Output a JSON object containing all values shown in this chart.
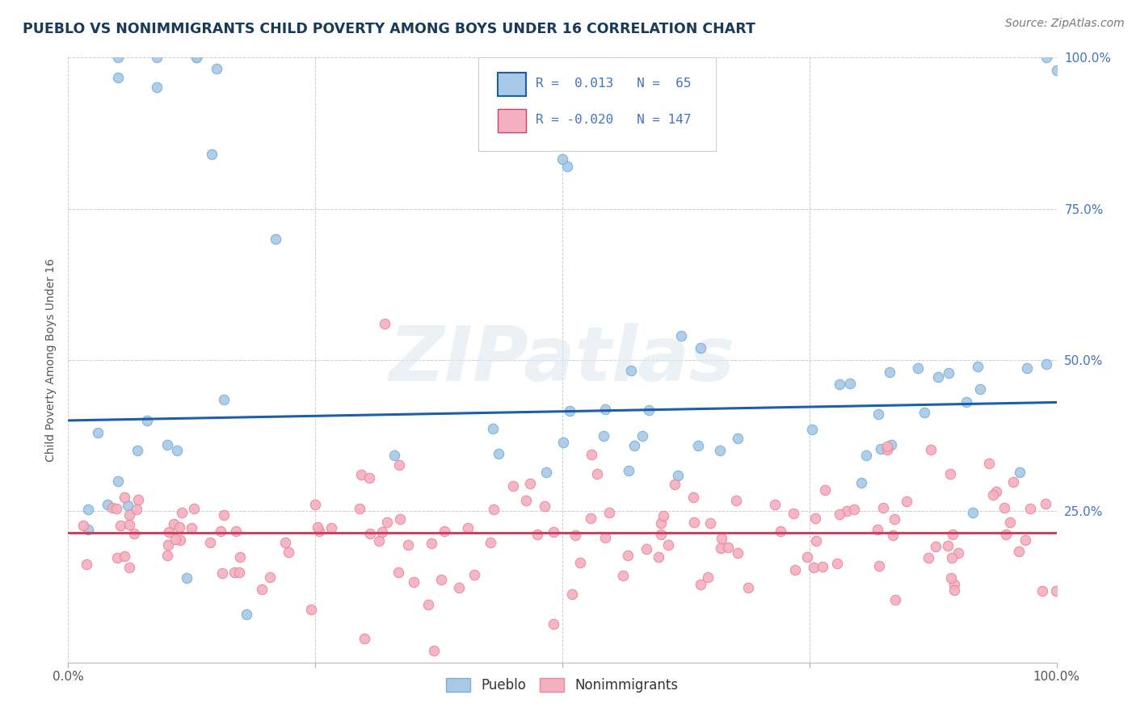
{
  "title": "PUEBLO VS NONIMMIGRANTS CHILD POVERTY AMONG BOYS UNDER 16 CORRELATION CHART",
  "source": "Source: ZipAtlas.com",
  "ylabel": "Child Poverty Among Boys Under 16",
  "watermark": "ZIPatlas",
  "r_pueblo": 0.013,
  "n_pueblo": 65,
  "r_nonimm": -0.02,
  "n_nonimm": 147,
  "pueblo_color": "#a8c8e8",
  "pueblo_edge_color": "#7aafd4",
  "nonimm_color": "#f4b0c0",
  "nonimm_edge_color": "#e88898",
  "pueblo_line_color": "#1a5fa8",
  "nonimm_line_color": "#d04060",
  "background_color": "#ffffff",
  "grid_color": "#cccccc",
  "title_color": "#1a3a5c",
  "ytick_color": "#4472c4",
  "source_color": "#777777"
}
